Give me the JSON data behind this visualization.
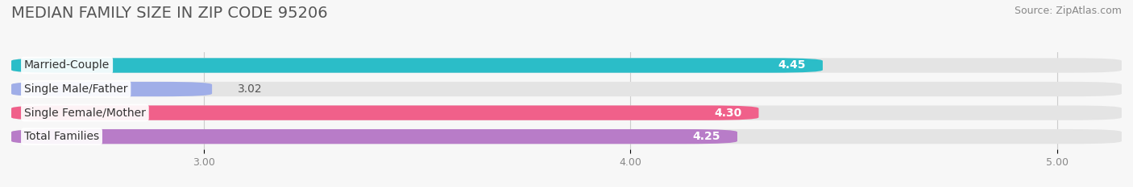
{
  "title": "MEDIAN FAMILY SIZE IN ZIP CODE 95206",
  "source": "Source: ZipAtlas.com",
  "categories": [
    "Married-Couple",
    "Single Male/Father",
    "Single Female/Mother",
    "Total Families"
  ],
  "values": [
    4.45,
    3.02,
    4.3,
    4.25
  ],
  "bar_colors": [
    "#2bbdc8",
    "#a0aee8",
    "#f0608a",
    "#b87cc8"
  ],
  "bar_height": 0.62,
  "xmin": 2.55,
  "xmax": 5.15,
  "xlim": [
    2.55,
    5.15
  ],
  "xticks": [
    3.0,
    4.0,
    5.0
  ],
  "xtick_labels": [
    "3.00",
    "4.00",
    "5.00"
  ],
  "background_color": "#f7f7f7",
  "bar_background_color": "#e4e4e4",
  "title_fontsize": 14,
  "source_fontsize": 9,
  "label_fontsize": 10,
  "value_fontsize": 10,
  "tick_fontsize": 9,
  "bar_gap": 0.18
}
